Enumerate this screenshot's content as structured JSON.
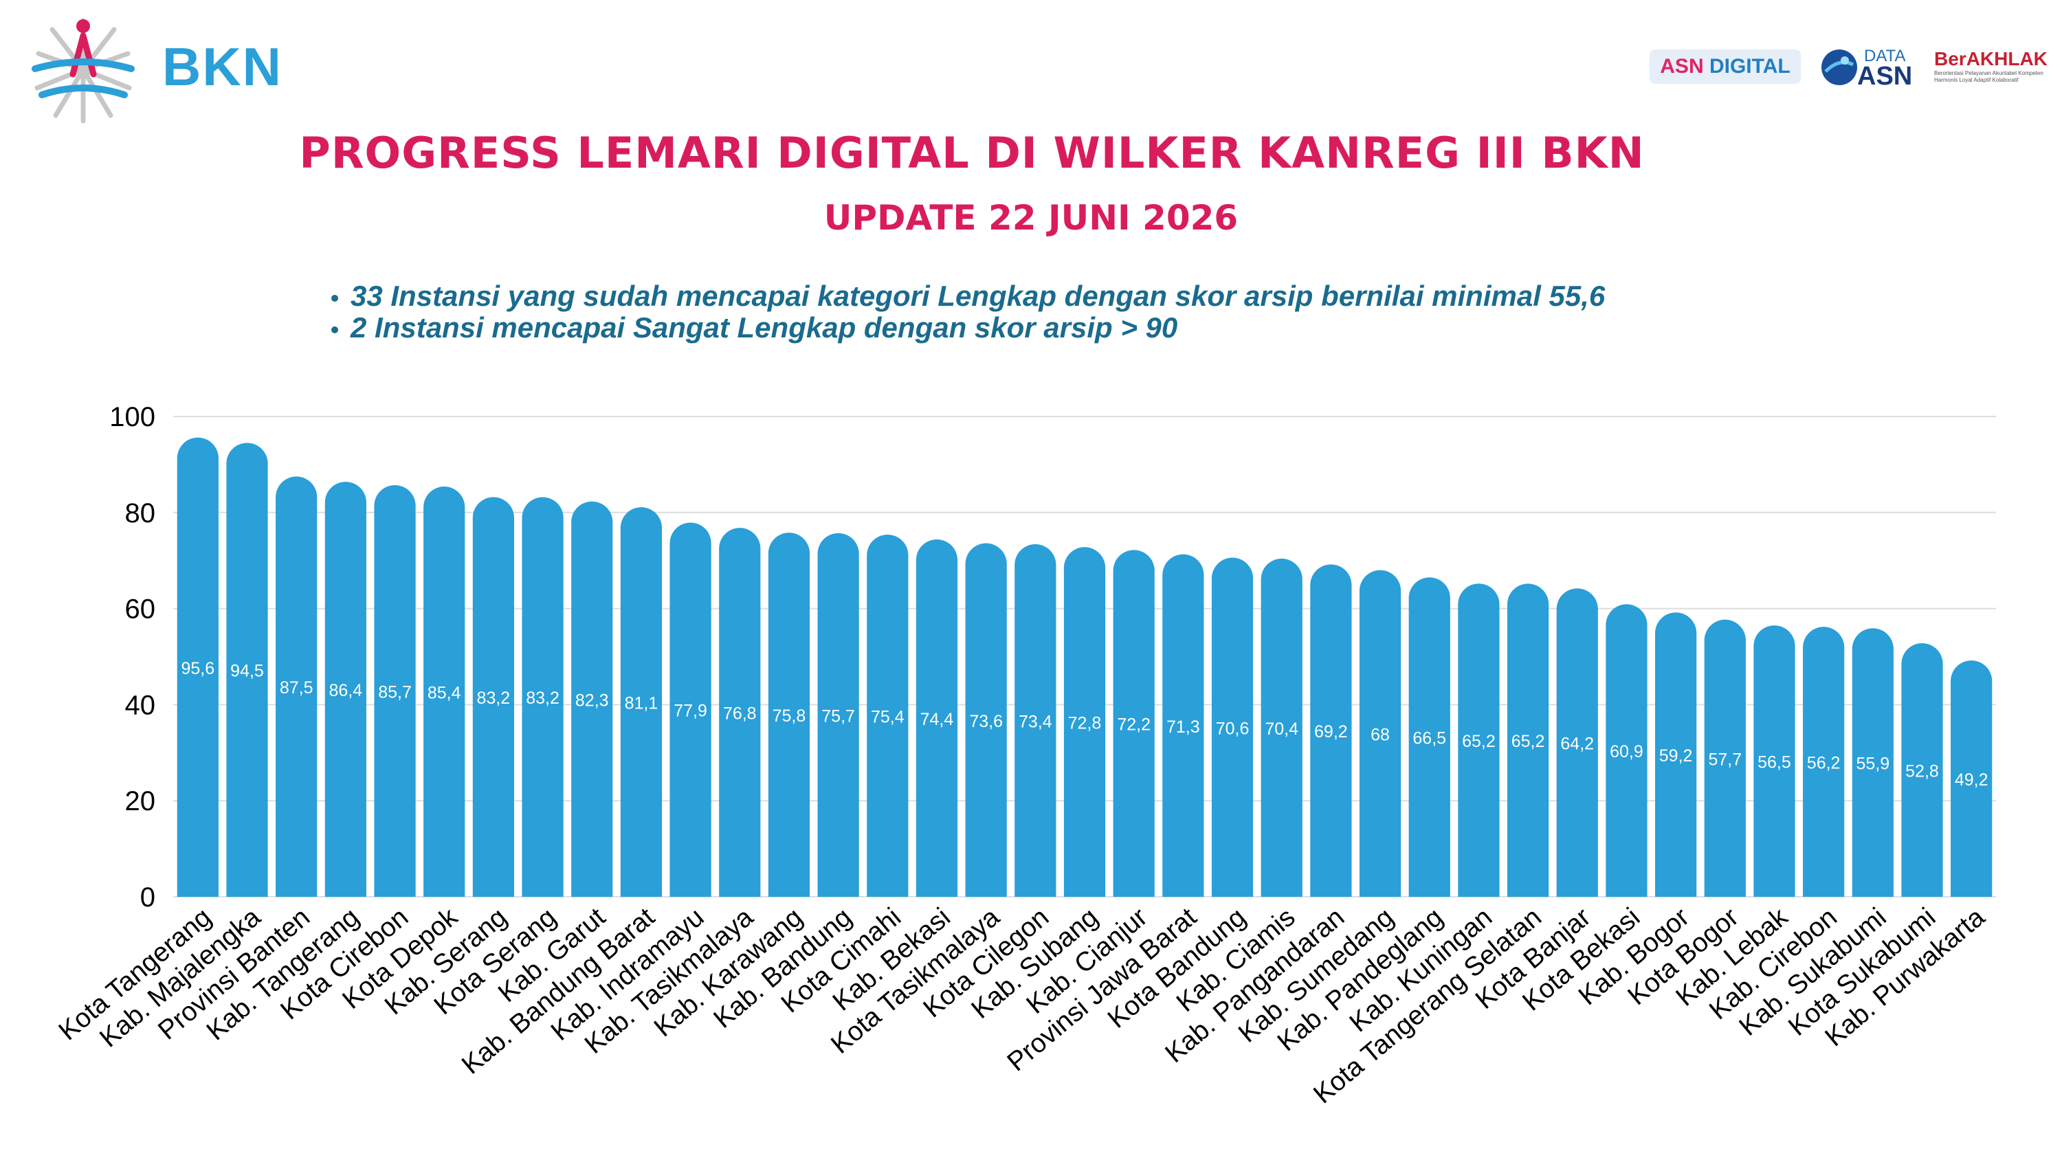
{
  "header": {
    "logo_text": "BKN",
    "badge_asn_part1": "ASN",
    "badge_asn_part2": "DIGITAL",
    "badge_data_top": "DATA",
    "badge_data_bottom": "ASN",
    "badge_berakhlak": "BerAKHLAK",
    "badge_berakhlak_tagline": "Berorientasi Pelayanan Akuntabel Kompeten Harmonis Loyal Adaptif Kolaboratif"
  },
  "title": "PROGRESS LEMARI DIGITAL DI WILKER KANREG III BKN",
  "subtitle": "UPDATE 22 JUNI 2026",
  "notes": [
    "33 Instansi yang sudah mencapai kategori Lengkap dengan skor arsip bernilai minimal 55,6",
    "2 Instansi mencapai Sangat Lengkap dengan skor arsip > 90"
  ],
  "colors": {
    "bar": "#2a9fd8",
    "title": "#d91d5c",
    "notes": "#1a6b8e"
  },
  "chart_data": {
    "type": "bar",
    "ylim": [
      0,
      100
    ],
    "yticks": [
      0,
      20,
      40,
      60,
      80,
      100
    ],
    "grid": true,
    "categories": [
      "Kota Tangerang",
      "Kab. Majalengka",
      "Provinsi Banten",
      "Kab. Tangerang",
      "Kota Cirebon",
      "Kota Depok",
      "Kab. Serang",
      "Kota Serang",
      "Kab. Garut",
      "Kab. Bandung Barat",
      "Kab. Indramayu",
      "Kab. Tasikmalaya",
      "Kab. Karawang",
      "Kab. Bandung",
      "Kota Cimahi",
      "Kab. Bekasi",
      "Kota Tasikmalaya",
      "Kota Cilegon",
      "Kab. Subang",
      "Kab. Cianjur",
      "Provinsi Jawa Barat",
      "Kota Bandung",
      "Kab. Ciamis",
      "Kab. Pangandaran",
      "Kab. Sumedang",
      "Kab. Pandeglang",
      "Kab. Kuningan",
      "Kota Tangerang Selatan",
      "Kota Banjar",
      "Kota Bekasi",
      "Kab. Bogor",
      "Kota Bogor",
      "Kab. Lebak",
      "Kab. Cirebon",
      "Kab. Sukabumi",
      "Kota Sukabumi",
      "Kab. Purwakarta"
    ],
    "values": [
      95.6,
      94.5,
      87.5,
      86.4,
      85.7,
      85.4,
      83.2,
      83.2,
      82.3,
      81.1,
      77.9,
      76.8,
      75.8,
      75.7,
      75.4,
      74.4,
      73.6,
      73.4,
      72.8,
      72.2,
      71.3,
      70.6,
      70.4,
      69.2,
      68,
      66.5,
      65.2,
      65.2,
      64.2,
      60.9,
      59.2,
      57.7,
      56.5,
      56.2,
      55.9,
      52.8,
      49.2
    ],
    "value_labels": [
      "95,6",
      "94,5",
      "87,5",
      "86,4",
      "85,7",
      "85,4",
      "83,2",
      "83,2",
      "82,3",
      "81,1",
      "77,9",
      "76,8",
      "75,8",
      "75,7",
      "75,4",
      "74,4",
      "73,6",
      "73,4",
      "72,8",
      "72,2",
      "71,3",
      "70,6",
      "70,4",
      "69,2",
      "68",
      "66,5",
      "65,2",
      "65,2",
      "64,2",
      "60,9",
      "59,2",
      "57,7",
      "56,5",
      "56,2",
      "55,9",
      "52,8",
      "49,2"
    ]
  }
}
